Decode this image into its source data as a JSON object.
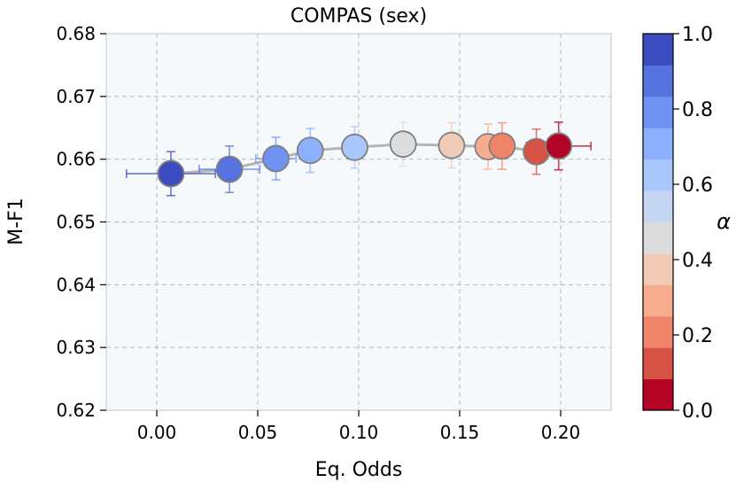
{
  "chart_data": {
    "type": "scatter",
    "title": "COMPAS (sex)",
    "xlabel": "Eq. Odds",
    "ylabel": "M-F1",
    "xlim": [
      -0.025,
      0.225
    ],
    "ylim": [
      0.62,
      0.68
    ],
    "xticks": [
      "0.00",
      "0.05",
      "0.10",
      "0.15",
      "0.20"
    ],
    "yticks": [
      "0.62",
      "0.63",
      "0.64",
      "0.65",
      "0.66",
      "0.67",
      "0.68"
    ],
    "grid": true,
    "connector_color": "#a9a9a9",
    "points": [
      {
        "alpha": 1.0,
        "x": 0.007,
        "y": 0.6577,
        "xerr": 0.022,
        "yerr": 0.0035,
        "color": "#3b4cc0"
      },
      {
        "alpha": 0.9,
        "x": 0.036,
        "y": 0.6584,
        "xerr": 0.015,
        "yerr": 0.0037,
        "color": "#5572df"
      },
      {
        "alpha": 0.8,
        "x": 0.059,
        "y": 0.6601,
        "xerr": 0.01,
        "yerr": 0.0034,
        "color": "#7093f3"
      },
      {
        "alpha": 0.7,
        "x": 0.076,
        "y": 0.6614,
        "xerr": 0.006,
        "yerr": 0.0035,
        "color": "#8db0fe"
      },
      {
        "alpha": 0.6,
        "x": 0.098,
        "y": 0.6619,
        "xerr": 0.004,
        "yerr": 0.0033,
        "color": "#aac7fd"
      },
      {
        "alpha": 0.5,
        "x": 0.122,
        "y": 0.6624,
        "xerr": 0.003,
        "yerr": 0.0035,
        "color": "#dddcdc"
      },
      {
        "alpha": 0.4,
        "x": 0.146,
        "y": 0.6622,
        "xerr": 0.004,
        "yerr": 0.0036,
        "color": "#f2cbb7"
      },
      {
        "alpha": 0.3,
        "x": 0.164,
        "y": 0.662,
        "xerr": 0.004,
        "yerr": 0.0036,
        "color": "#f7ac8e"
      },
      {
        "alpha": 0.2,
        "x": 0.171,
        "y": 0.6621,
        "xerr": 0.005,
        "yerr": 0.0037,
        "color": "#ee8468"
      },
      {
        "alpha": 0.1,
        "x": 0.188,
        "y": 0.6612,
        "xerr": 0.005,
        "yerr": 0.0036,
        "color": "#d65244"
      },
      {
        "alpha": 0.0,
        "x": 0.199,
        "y": 0.6621,
        "xerr": 0.016,
        "yerr": 0.0038,
        "color": "#b40426"
      }
    ],
    "colorbar": {
      "label": "α",
      "ticks": [
        "0.0",
        "0.2",
        "0.4",
        "0.6",
        "0.8",
        "1.0"
      ],
      "range": [
        0.0,
        1.0
      ],
      "segments": [
        "#b40426",
        "#d65244",
        "#ee8468",
        "#f7ac8e",
        "#f2cbb7",
        "#dddcdc",
        "#c5d6f2",
        "#aac7fd",
        "#8db0fe",
        "#7093f3",
        "#5572df",
        "#3b4cc0"
      ]
    }
  }
}
